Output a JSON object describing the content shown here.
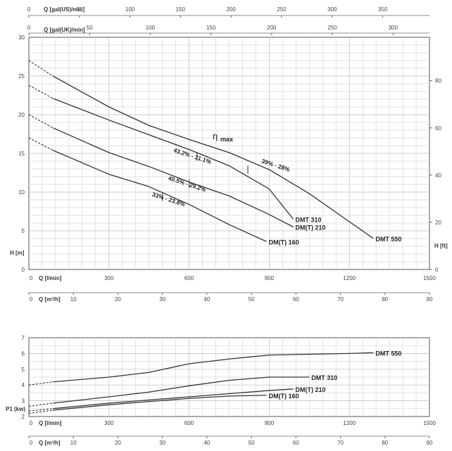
{
  "chart_data": [
    {
      "type": "line",
      "id": "head",
      "ylabel_left": "H [m]",
      "ylabel_right": "H [ft]",
      "ylim": [
        0,
        30
      ],
      "ylim_ft": [
        0,
        98.4
      ],
      "yticks": [
        0,
        5,
        10,
        15,
        20,
        25,
        30
      ],
      "yticks_ft": [
        0,
        20,
        40,
        60,
        80
      ],
      "x_axes": {
        "lmin": {
          "label": "Q [l/min]",
          "lim": [
            0,
            1500
          ],
          "ticks": [
            0,
            300,
            600,
            900,
            1200,
            1500
          ]
        },
        "m3h": {
          "label": "Q [m³/h]",
          "lim": [
            0,
            90
          ],
          "ticks": [
            0,
            10,
            20,
            30,
            40,
            50,
            60,
            70,
            80,
            90
          ]
        },
        "gal_us": {
          "label": "Q [gal(US)/min]",
          "lim": [
            0,
            396.3
          ],
          "ticks": [
            0,
            50,
            100,
            150,
            200,
            250,
            300,
            350
          ]
        },
        "gal_uk": {
          "label": "Q [gal(UK)/min]",
          "lim": [
            0,
            330
          ],
          "ticks": [
            0,
            50,
            100,
            150,
            200,
            250,
            300
          ]
        }
      },
      "grid": true,
      "series": [
        {
          "name": "DMT 550",
          "dashed_until": 90,
          "x": [
            0,
            90,
            300,
            450,
            600,
            750,
            900,
            1050,
            1170,
            1290
          ],
          "y": [
            27,
            25,
            21,
            18.6,
            16.8,
            15.1,
            12.9,
            9.8,
            6.9,
            4
          ]
        },
        {
          "name": "DMT 310",
          "dashed_until": 90,
          "x": [
            0,
            90,
            300,
            450,
            600,
            750,
            900,
            990
          ],
          "y": [
            23.8,
            22.1,
            19.3,
            17.4,
            15.5,
            13.4,
            10.4,
            6.5
          ]
        },
        {
          "name": "DM(T) 210",
          "dashed_until": 90,
          "x": [
            0,
            90,
            300,
            450,
            600,
            750,
            900,
            990
          ],
          "y": [
            20,
            18.3,
            15.1,
            13.3,
            11.3,
            9.5,
            7.1,
            5.5
          ]
        },
        {
          "name": "DM(T) 160",
          "dashed_until": 90,
          "x": [
            0,
            90,
            300,
            450,
            600,
            750,
            890
          ],
          "y": [
            17,
            15.4,
            12.3,
            10.7,
            8.4,
            5.8,
            3.6
          ]
        }
      ],
      "efficiency": {
        "label": "η",
        "sub": "max",
        "annotations": [
          {
            "text": "43.2% - 31.1%",
            "x": 540,
            "y": 15.2,
            "marker_x": 630,
            "marker_y": 14.6
          },
          {
            "text": "39% - 28%",
            "x": 870,
            "y": 13.8,
            "marker_x": 820,
            "marker_y": 12.9
          },
          {
            "text": "40.5% - 29.2%",
            "x": 520,
            "y": 11.6,
            "marker_x": 600,
            "marker_y": 11.1
          },
          {
            "text": "33% - 23.8%",
            "x": 460,
            "y": 9.5,
            "marker_x": 500,
            "marker_y": 9.4
          }
        ]
      }
    },
    {
      "type": "line",
      "id": "power",
      "ylabel": "P1 (kw)",
      "ylim": [
        2,
        7
      ],
      "yticks": [
        2,
        3,
        4,
        5,
        6,
        7
      ],
      "x_axes": {
        "lmin": {
          "label": "Q [l/min]",
          "lim": [
            0,
            1500
          ],
          "ticks": [
            0,
            300,
            600,
            900,
            1200,
            1500
          ]
        },
        "m3h": {
          "label": "Q [m³/h]",
          "lim": [
            0,
            90
          ],
          "ticks": [
            0,
            10,
            20,
            30,
            40,
            50,
            60,
            70,
            80,
            90
          ]
        }
      },
      "grid": true,
      "series": [
        {
          "name": "DMT 550",
          "dashed_until": 90,
          "x": [
            0,
            90,
            300,
            450,
            600,
            750,
            900,
            1050,
            1200,
            1290
          ],
          "y": [
            4.0,
            4.2,
            4.5,
            4.8,
            5.35,
            5.65,
            5.9,
            5.95,
            6.0,
            6.05
          ]
        },
        {
          "name": "DMT 310",
          "dashed_until": 90,
          "x": [
            0,
            90,
            300,
            450,
            600,
            750,
            900,
            1050
          ],
          "y": [
            2.65,
            2.85,
            3.25,
            3.55,
            3.95,
            4.3,
            4.5,
            4.5
          ]
        },
        {
          "name": "DM(T) 210",
          "dashed_until": 90,
          "x": [
            0,
            90,
            300,
            450,
            600,
            750,
            900,
            990
          ],
          "y": [
            2.35,
            2.5,
            2.85,
            3.05,
            3.25,
            3.45,
            3.65,
            3.75
          ]
        },
        {
          "name": "DM(T) 160",
          "dashed_until": 90,
          "x": [
            0,
            90,
            300,
            450,
            600,
            750,
            890
          ],
          "y": [
            2.2,
            2.4,
            2.75,
            2.95,
            3.15,
            3.3,
            3.35
          ]
        }
      ]
    }
  ]
}
